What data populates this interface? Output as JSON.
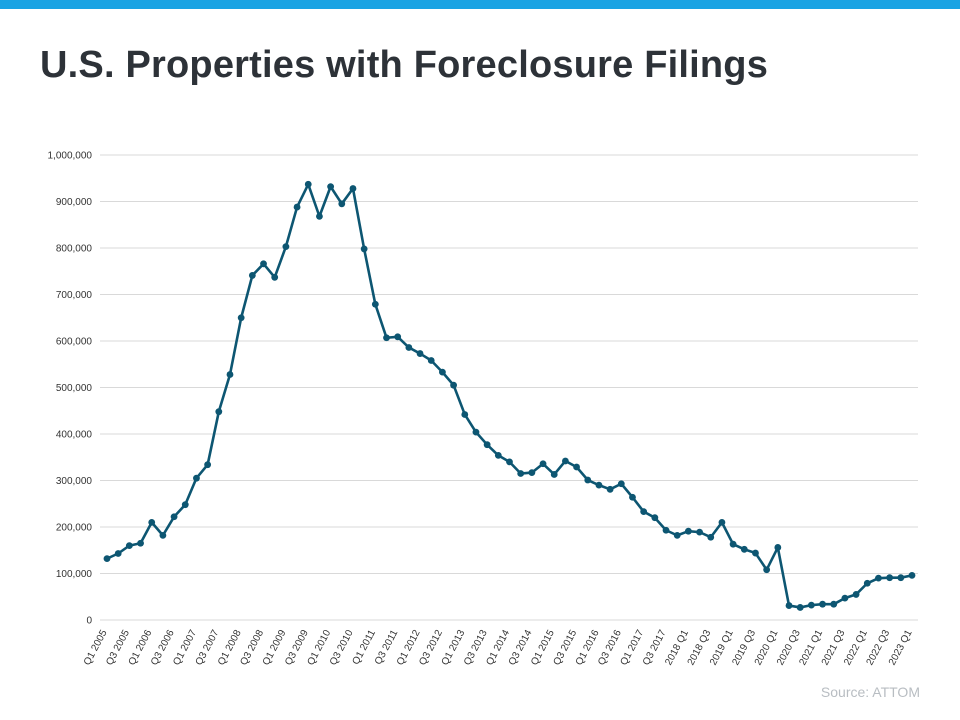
{
  "header": {
    "title": "U.S. Properties with Foreclosure Filings"
  },
  "footer": {
    "source": "Source: ATTOM"
  },
  "colors": {
    "accent_bar": "#1aa3e3",
    "series_line": "#0d5672",
    "gridline": "#d9d9d9"
  },
  "chart_data": {
    "type": "line",
    "title": "U.S. Properties with Foreclosure Filings",
    "xlabel": "",
    "ylabel": "",
    "ylim": [
      0,
      1000000
    ],
    "yticks": [
      0,
      100000,
      200000,
      300000,
      400000,
      500000,
      600000,
      700000,
      800000,
      900000,
      1000000
    ],
    "ytick_labels": [
      "0",
      "100,000",
      "200,000",
      "300,000",
      "400,000",
      "500,000",
      "600,000",
      "700,000",
      "800,000",
      "900,000",
      "1,000,000"
    ],
    "grid": true,
    "legend": "none",
    "x_tick_labels": [
      "Q1 2005",
      "",
      "Q3 2005",
      "",
      "Q1 2006",
      "",
      "Q3 2006",
      "",
      "Q1 2007",
      "",
      "Q3 2007",
      "",
      "Q1 2008",
      "",
      "Q3 2008",
      "",
      "Q1 2009",
      "",
      "Q3 2009",
      "",
      "Q1 2010",
      "",
      "Q3 2010",
      "",
      "Q1 2011",
      "",
      "Q3 2011",
      "",
      "Q1 2012",
      "",
      "Q3 2012",
      "",
      "Q1 2013",
      "",
      "Q3 2013",
      "",
      "Q1 2014",
      "",
      "Q3 2014",
      "",
      "Q1 2015",
      "",
      "Q3 2015",
      "",
      "Q1 2016",
      "",
      "Q3 2016",
      "",
      "Q1 2017",
      "",
      "Q3 2017",
      "",
      "2018 Q1",
      "",
      "2018 Q3",
      "",
      "2019 Q1",
      "",
      "2019 Q3",
      "",
      "2020 Q1",
      "",
      "2020 Q3",
      "",
      "2021 Q1",
      "",
      "2021 Q3",
      "",
      "2022 Q1",
      "",
      "2022 Q3",
      "",
      "2023 Q1"
    ],
    "series": [
      {
        "values": [
          132000,
          143000,
          160000,
          165000,
          210000,
          182000,
          222000,
          248000,
          305000,
          334000,
          448000,
          528000,
          650000,
          741000,
          766000,
          737000,
          803000,
          888000,
          937000,
          868000,
          932000,
          895000,
          928000,
          798000,
          679000,
          607000,
          609000,
          586000,
          573000,
          558000,
          533000,
          505000,
          442000,
          404000,
          377000,
          354000,
          340000,
          315000,
          317000,
          336000,
          313000,
          342000,
          329000,
          301000,
          290000,
          281000,
          293000,
          264000,
          233000,
          220000,
          193000,
          182000,
          191000,
          189000,
          178000,
          210000,
          163000,
          152000,
          144000,
          108000,
          156000,
          31000,
          27000,
          32000,
          34000,
          34000,
          47000,
          55000,
          79000,
          90000,
          91000,
          91000,
          96000
        ]
      }
    ]
  }
}
